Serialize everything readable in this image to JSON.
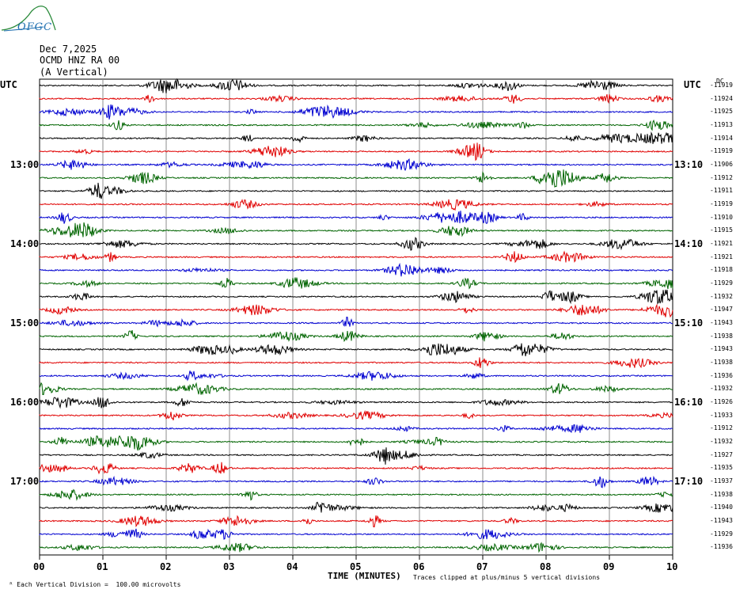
{
  "header": {
    "date": "Dec 7,2025",
    "station": "OCMD HNZ RA 00",
    "component": "(A Vertical)"
  },
  "logo": {
    "text": "OFGC"
  },
  "labels": {
    "utc_left": "UTC",
    "utc_right": "UTC",
    "dc": "DC",
    "scale_note": "Each Vertical Division =  100.00 microvolts",
    "clip_note": "Traces clipped at plus/minus 5 vertical divisions"
  },
  "chart_data": {
    "type": "line",
    "xlabel": "TIME (MINUTES)",
    "x_ticks": [
      "00",
      "01",
      "02",
      "03",
      "04",
      "05",
      "06",
      "07",
      "08",
      "09",
      "10"
    ],
    "xlim": [
      0,
      10
    ],
    "left_hour_labels": [
      "13:00",
      "14:00",
      "15:00",
      "16:00",
      "17:00"
    ],
    "right_hour_labels": [
      "13:10",
      "14:10",
      "15:10",
      "16:10",
      "17:10"
    ],
    "trace_colors": [
      "#000000",
      "#e00000",
      "#0000d0",
      "#006400"
    ],
    "dc_offsets": [
      -11919,
      -11924,
      -11925,
      -11913,
      -11914,
      -11919,
      -11906,
      -11912,
      -11911,
      -11919,
      -11910,
      -11915,
      -11921,
      -11921,
      -11918,
      -11929,
      -11932,
      -11947,
      -11943,
      -11938,
      -11943,
      -11938,
      -11936,
      -11932,
      -11926,
      -11933,
      -11912,
      -11932,
      -11927,
      -11935,
      -11937,
      -11938,
      -11940,
      -11943,
      -11929,
      -11936
    ],
    "grid": true
  }
}
